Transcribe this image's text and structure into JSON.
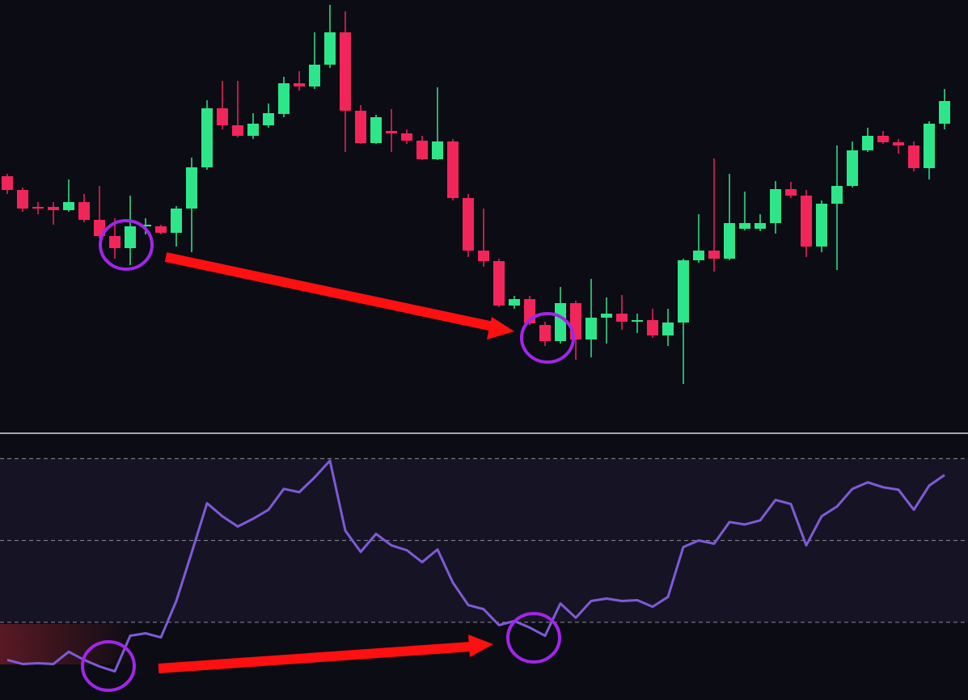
{
  "chart_data": [
    {
      "type": "candlestick",
      "open": [
        322,
        305,
        284,
        284,
        280,
        290,
        268,
        248,
        233,
        260,
        260,
        252,
        282,
        333,
        406,
        385,
        372,
        385,
        399,
        437,
        433,
        460,
        500,
        403,
        363,
        378,
        375,
        366,
        343,
        365,
        295,
        230,
        217,
        162,
        170,
        138,
        118,
        165,
        120,
        147,
        152,
        142,
        144,
        125,
        141,
        218,
        230,
        220,
        257,
        257,
        264,
        306,
        298,
        235,
        288,
        310,
        354,
        372,
        364,
        360,
        332,
        387
      ],
      "high": [
        325,
        308,
        290,
        290,
        318,
        300,
        310,
        270,
        298,
        270,
        262,
        285,
        345,
        416,
        440,
        440,
        400,
        412,
        445,
        452,
        500,
        534,
        526,
        410,
        398,
        405,
        380,
        372,
        432,
        368,
        300,
        282,
        220,
        174,
        174,
        142,
        185,
        168,
        195,
        172,
        175,
        152,
        158,
        158,
        220,
        275,
        344,
        325,
        303,
        275,
        316,
        315,
        305,
        292,
        360,
        365,
        382,
        378,
        368,
        365,
        390,
        430
      ],
      "low": [
        300,
        278,
        275,
        262,
        278,
        265,
        245,
        220,
        212,
        250,
        250,
        235,
        228,
        330,
        380,
        370,
        368,
        382,
        395,
        428,
        430,
        456,
        352,
        362,
        362,
        352,
        362,
        342,
        342,
        292,
        222,
        210,
        160,
        158,
        138,
        112,
        115,
        95,
        98,
        115,
        132,
        128,
        122,
        112,
        65,
        215,
        204,
        218,
        255,
        254,
        251,
        295,
        222,
        228,
        206,
        308,
        352,
        362,
        350,
        328,
        318,
        380
      ],
      "close": [
        305,
        282,
        282,
        280,
        290,
        268,
        248,
        233,
        260,
        262,
        252,
        282,
        333,
        406,
        385,
        372,
        387,
        400,
        437,
        433,
        460,
        500,
        403,
        363,
        395,
        375,
        366,
        343,
        365,
        295,
        230,
        217,
        162,
        170,
        140,
        118,
        165,
        120,
        147,
        152,
        142,
        144,
        125,
        141,
        218,
        230,
        220,
        264,
        264,
        264,
        306,
        298,
        235,
        288,
        310,
        354,
        372,
        364,
        360,
        332,
        387,
        415
      ],
      "up_color": "#2ee68a",
      "down_color": "#f2255a",
      "ylim": [
        0,
        540
      ]
    },
    {
      "type": "line",
      "values": [
        20.8,
        19.8,
        20.0,
        19.8,
        22.8,
        20.8,
        19.2,
        18.0,
        26.7,
        27.3,
        26.3,
        35.2,
        47.0,
        59.1,
        55.9,
        53.4,
        55.3,
        57.5,
        62.6,
        61.8,
        65.4,
        69.5,
        52.4,
        47.2,
        51.6,
        48.8,
        47.6,
        44.7,
        47.8,
        39.7,
        34.2,
        33.2,
        29.3,
        30.3,
        28.7,
        26.7,
        34.6,
        31.1,
        35.2,
        35.8,
        35.2,
        35.4,
        33.8,
        36.2,
        48.4,
        50.0,
        49.2,
        54.5,
        53.9,
        54.9,
        59.9,
        58.9,
        48.8,
        55.9,
        58.3,
        62.6,
        64.2,
        63.0,
        62.4,
        57.5,
        63.4,
        66.0
      ],
      "color": "#7e5bd6",
      "levels": [
        30,
        50,
        70
      ],
      "ylim": [
        11,
        76
      ]
    }
  ]
}
